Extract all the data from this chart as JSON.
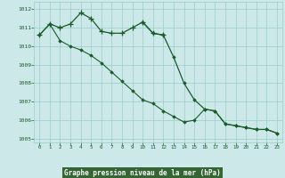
{
  "title": "Graphe pression niveau de la mer (hPa)",
  "xlabel_hours": [
    0,
    1,
    2,
    3,
    4,
    5,
    6,
    7,
    8,
    9,
    10,
    11,
    12,
    13,
    14,
    15,
    16,
    17,
    18,
    19,
    20,
    21,
    22,
    23
  ],
  "series1_x": [
    0,
    1,
    2,
    3,
    4,
    5,
    6,
    7,
    8,
    9,
    10,
    11,
    12
  ],
  "series1_y": [
    1010.6,
    1011.2,
    1011.0,
    1011.2,
    1011.8,
    1011.5,
    1010.8,
    1010.7,
    1010.7,
    1011.0,
    1011.3,
    1010.7,
    1010.6
  ],
  "series2_x": [
    10,
    11,
    12,
    13,
    14,
    15,
    16,
    17,
    18,
    19,
    20,
    21,
    22,
    23
  ],
  "series2_y": [
    1011.3,
    1010.7,
    1010.6,
    1009.4,
    1008.0,
    1007.1,
    1006.6,
    1006.5,
    1005.8,
    1005.7,
    1005.6,
    1005.5,
    1005.5,
    1005.3
  ],
  "series3_x": [
    0,
    1,
    2,
    3,
    4,
    5,
    6,
    7,
    8,
    9,
    10,
    11,
    12,
    13,
    14,
    15,
    16,
    17,
    18,
    19,
    20,
    21,
    22,
    23
  ],
  "series3_y": [
    1010.6,
    1011.2,
    1010.3,
    1010.0,
    1009.8,
    1009.5,
    1009.1,
    1008.6,
    1008.1,
    1007.6,
    1007.1,
    1006.9,
    1006.5,
    1006.2,
    1005.9,
    1006.0,
    1006.6,
    1006.5,
    1005.8,
    1005.7,
    1005.6,
    1005.5,
    1005.5,
    1005.3
  ],
  "ylim": [
    1004.8,
    1012.4
  ],
  "yticks": [
    1005,
    1006,
    1007,
    1008,
    1009,
    1010,
    1011,
    1012
  ],
  "bg_color": "#cce8e8",
  "grid_color": "#99cccc",
  "line_color": "#1a5c2a",
  "marker_color": "#1a5c2a",
  "text_color": "#1a5c2a",
  "label_bg_color": "#336633"
}
